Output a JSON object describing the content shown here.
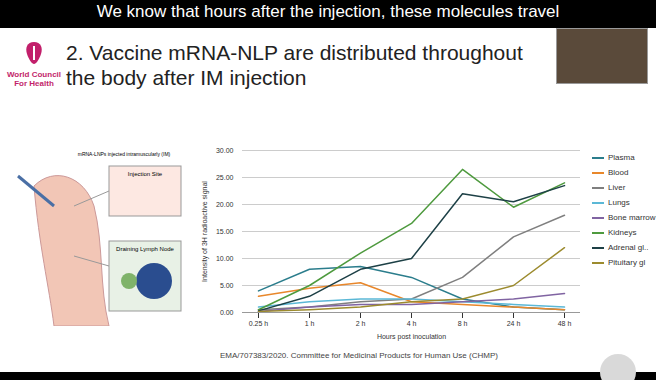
{
  "caption": "We know that hours after the injection, these molecules travel",
  "logo": "World Council For Health",
  "source": "EMA/707383/2020. Committee for Medicinal Products for Human Use (CHMP)",
  "diagram": {
    "title": "mRNA-LNPs injected intramuscularly (IM)",
    "labels": [
      "Injection Site",
      "Draining Lymph Node"
    ]
  },
  "chart_data": {
    "type": "line",
    "title": "2. Vaccine mRNA-NLP are distributed throughout the body after IM injection",
    "x_label": "Hours post inoculation",
    "y_label": "Intensity of 3H radioactive signal",
    "x": [
      "0.25 h",
      "1 h",
      "2 h",
      "4 h",
      "8 h",
      "24 h",
      "48 h"
    ],
    "ylim": [
      0,
      30
    ],
    "yticks": [
      {
        "value": 0,
        "label": "0.00"
      },
      {
        "value": 5,
        "label": "5.00"
      },
      {
        "value": 10,
        "label": "10.00"
      },
      {
        "value": 15,
        "label": "15.00"
      },
      {
        "value": 20,
        "label": "20.00"
      },
      {
        "value": 25,
        "label": "25.00"
      },
      {
        "value": 30,
        "label": "30.00"
      }
    ],
    "grid": true,
    "legend": "right",
    "series": [
      {
        "name": "Plasma",
        "color": "#2b7d8c",
        "values": [
          4,
          8,
          8.5,
          6.5,
          2.5,
          1,
          0.5
        ]
      },
      {
        "name": "Blood",
        "color": "#e8872b",
        "values": [
          3,
          4.5,
          5.5,
          2,
          1.5,
          1,
          0.5
        ]
      },
      {
        "name": "Liver",
        "color": "#7f7f7f",
        "values": [
          0.5,
          1,
          2,
          2.5,
          6.5,
          14,
          18
        ]
      },
      {
        "name": "Lungs",
        "color": "#5bb8d6",
        "values": [
          1,
          2,
          2.5,
          2.5,
          2,
          1.5,
          1
        ]
      },
      {
        "name": "Bone marrow",
        "color": "#8064a2",
        "values": [
          0.2,
          1,
          1.5,
          1.5,
          2,
          2.5,
          3.5
        ]
      },
      {
        "name": "Kidneys",
        "color": "#4e9a3e",
        "values": [
          0.5,
          5,
          11,
          16.5,
          26.5,
          19.5,
          24
        ]
      },
      {
        "name": "Adrenal gl..",
        "color": "#1d4046",
        "values": [
          0.3,
          3,
          8,
          10,
          22,
          20.5,
          23.5
        ]
      },
      {
        "name": "Pituitary gl",
        "color": "#9c8b2e",
        "values": [
          0.2,
          0.5,
          1,
          2,
          2.5,
          5,
          12
        ]
      }
    ]
  }
}
